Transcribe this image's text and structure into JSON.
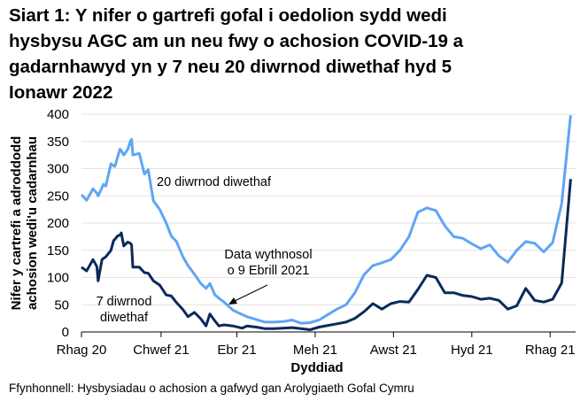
{
  "title_lines": [
    "Siart 1: Y nifer o gartrefi gofal i oedolion sydd wedi",
    "hysbysu AGC am un neu fwy o achosion COVID-19 a",
    "gadarnhawyd yn y 7 neu 20 diwrnod diwethaf hyd 5",
    "Ionawr 2022"
  ],
  "source": "Ffynhonnell: Hysbysiadau o achosion a gafwyd gan Arolygiaeth Gofal Cymru",
  "chart_data": {
    "type": "line",
    "title": "Siart 1: Y nifer o gartrefi gofal i oedolion sydd wedi hysbysu AGC am un neu fwy o achosion COVID-19 a gadarnhawyd yn y 7 neu 20 diwrnod diwethaf hyd 5 Ionawr 2022",
    "xlabel": "Dyddiad",
    "ylabel_lines": [
      "Nifer y cartrefi a adroddodd",
      "achosion wedi'u cadarnhau"
    ],
    "ylim": [
      0,
      400
    ],
    "yticks": [
      0,
      50,
      100,
      150,
      200,
      250,
      300,
      350,
      400
    ],
    "xlim": [
      "2020-12-01",
      "2021-12-20"
    ],
    "xticks": [
      {
        "date": "2020-12-01",
        "label": "Rhag 20"
      },
      {
        "date": "2021-02-01",
        "label": "Chwef 21"
      },
      {
        "date": "2021-04-01",
        "label": "Ebr 21"
      },
      {
        "date": "2021-06-01",
        "label": "Meh 21"
      },
      {
        "date": "2021-08-01",
        "label": "Awst 21"
      },
      {
        "date": "2021-10-01",
        "label": "Hyd 21"
      },
      {
        "date": "2021-12-01",
        "label": "Rhag 21"
      }
    ],
    "grid": "horizontal",
    "legend": "none (direct labels)",
    "colors": {
      "20_day": "#5ea5f4",
      "7_day": "#0b2a5b"
    },
    "annotations": {
      "label_20": "20 diwrnod diwethaf",
      "label_7_line1": "7 diwrnod",
      "label_7_line2": "diwethaf",
      "weekly_line1": "Data wythnosol",
      "weekly_line2": "o 9 Ebrill 2021"
    },
    "dates": [
      "2020-12-01",
      "2020-12-05",
      "2020-12-10",
      "2020-12-13",
      "2020-12-14",
      "2020-12-17",
      "2020-12-18",
      "2020-12-20",
      "2020-12-24",
      "2020-12-26",
      "2020-12-27",
      "2020-12-29",
      "2020-12-31",
      "2021-01-01",
      "2021-01-03",
      "2021-01-06",
      "2021-01-08",
      "2021-01-09",
      "2021-01-10",
      "2021-01-15",
      "2021-01-19",
      "2021-01-22",
      "2021-01-26",
      "2021-01-31",
      "2021-02-05",
      "2021-02-09",
      "2021-02-13",
      "2021-02-18",
      "2021-02-22",
      "2021-02-27",
      "2021-03-04",
      "2021-03-08",
      "2021-03-11",
      "2021-03-15",
      "2021-03-18",
      "2021-03-22",
      "2021-03-29",
      "2021-04-05",
      "2021-04-09",
      "2021-04-16",
      "2021-04-23",
      "2021-04-30",
      "2021-05-07",
      "2021-05-14",
      "2021-05-21",
      "2021-05-28",
      "2021-06-04",
      "2021-06-11",
      "2021-06-18",
      "2021-06-25",
      "2021-07-02",
      "2021-07-09",
      "2021-07-16",
      "2021-07-23",
      "2021-07-30",
      "2021-08-06",
      "2021-08-13",
      "2021-08-20",
      "2021-08-27",
      "2021-09-03",
      "2021-09-10",
      "2021-09-17",
      "2021-09-24",
      "2021-10-01",
      "2021-10-08",
      "2021-10-15",
      "2021-10-22",
      "2021-10-29",
      "2021-11-05",
      "2021-11-12",
      "2021-11-19",
      "2021-11-26",
      "2021-12-03",
      "2021-12-10",
      "2021-12-17"
    ],
    "series": [
      {
        "name": "20 diwrnod diwethaf",
        "color": "#5ea5f4",
        "values": [
          252,
          242,
          263,
          255,
          250,
          265,
          271,
          268,
          309,
          305,
          304,
          320,
          336,
          333,
          325,
          335,
          350,
          354,
          325,
          328,
          290,
          298,
          241,
          225,
          200,
          176,
          166,
          138,
          122,
          106,
          89,
          80,
          89,
          68,
          62,
          55,
          40,
          32,
          28,
          23,
          18,
          18,
          19,
          22,
          16,
          17,
          22,
          32,
          42,
          50,
          72,
          105,
          122,
          127,
          133,
          150,
          175,
          220,
          228,
          223,
          195,
          175,
          172,
          162,
          153,
          160,
          140,
          128,
          150,
          166,
          163,
          147,
          164,
          236,
          398
        ]
      },
      {
        "name": "7 diwrnod diwethaf",
        "color": "#0b2a5b",
        "values": [
          119,
          112,
          133,
          120,
          94,
          133,
          135,
          138,
          150,
          168,
          170,
          176,
          178,
          182,
          158,
          165,
          163,
          160,
          119,
          119,
          109,
          108,
          94,
          86,
          68,
          66,
          54,
          41,
          28,
          36,
          24,
          11,
          33,
          20,
          11,
          13,
          11,
          7,
          11,
          9,
          6,
          6,
          7,
          8,
          6,
          4,
          9,
          12,
          15,
          18,
          25,
          37,
          52,
          42,
          52,
          56,
          55,
          78,
          104,
          100,
          72,
          72,
          67,
          65,
          60,
          62,
          58,
          42,
          48,
          80,
          58,
          55,
          60,
          90,
          281
        ]
      }
    ]
  }
}
